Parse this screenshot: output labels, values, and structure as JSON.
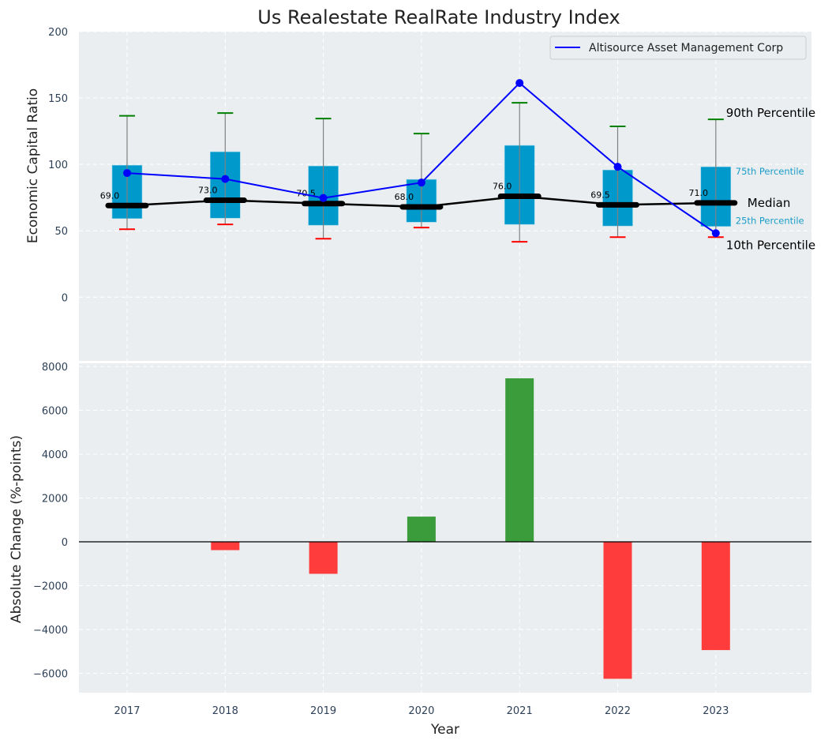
{
  "chart_data": [
    {
      "type": "box",
      "title": "Us Realestate RealRate Industry Index",
      "xlabel": "",
      "ylabel": "Economic Capital Ratio",
      "ylim": [
        -48,
        200
      ],
      "yticks": [
        0,
        50,
        100,
        150,
        200
      ],
      "grid": true,
      "categories": [
        "2017",
        "2018",
        "2019",
        "2020",
        "2021",
        "2022",
        "2023"
      ],
      "percentiles": {
        "p10": [
          51.2,
          54.8,
          44.0,
          52.4,
          41.7,
          45.2,
          45.2
        ],
        "p25": [
          59.2,
          59.5,
          54.2,
          56.5,
          54.8,
          53.6,
          53.3
        ],
        "median": [
          69.0,
          73.0,
          70.5,
          68.0,
          76.0,
          69.5,
          71.0
        ],
        "p75": [
          99.4,
          109.5,
          98.8,
          88.7,
          114.3,
          95.8,
          98.2
        ],
        "p90": [
          136.6,
          138.7,
          134.5,
          123.2,
          146.4,
          128.6,
          133.9
        ]
      },
      "median_labels": [
        "69.0",
        "73.0",
        "70.5",
        "68.0",
        "76.0",
        "69.5",
        "71.0"
      ],
      "series": [
        {
          "name": "Altisource Asset Management Corp",
          "values": [
            93.5,
            89.0,
            74.7,
            86.3,
            161.3,
            98.2,
            48.2
          ],
          "color": "#0000ff"
        }
      ],
      "legend": {
        "position": "top-right",
        "entries": [
          "Altisource Asset Management Corp"
        ]
      },
      "annotations": {
        "p90": "90th Percentile",
        "p75": "75th Percentile",
        "median": "Median",
        "p25": "25th Percentile",
        "p10": "10th Percentile"
      },
      "colors": {
        "box": "#0099cc",
        "median_line": "#000000",
        "p90_cap": "#008000",
        "p10_cap": "#ff0000",
        "whisker": "#808080",
        "annotation_small": "#1a9dc8",
        "background": "#eaeef0"
      }
    },
    {
      "type": "bar",
      "title": "",
      "xlabel": "Year",
      "ylabel": "Absolute Change (%-points)",
      "ylim": [
        -6900,
        8000
      ],
      "yticks": [
        -6000,
        -4000,
        -2000,
        0,
        2000,
        4000,
        6000,
        8000
      ],
      "ytick_labels": [
        "−6000",
        "−4000",
        "−2000",
        "0",
        "2000",
        "4000",
        "6000",
        "8000"
      ],
      "grid": true,
      "categories": [
        "2017",
        "2018",
        "2019",
        "2020",
        "2021",
        "2022",
        "2023"
      ],
      "values": [
        0,
        -380,
        -1460,
        1150,
        7460,
        -6250,
        -4940
      ],
      "colors": {
        "positive": "#3a9c3a",
        "negative": "#ff3c3c",
        "zero_line": "#000000"
      }
    }
  ]
}
